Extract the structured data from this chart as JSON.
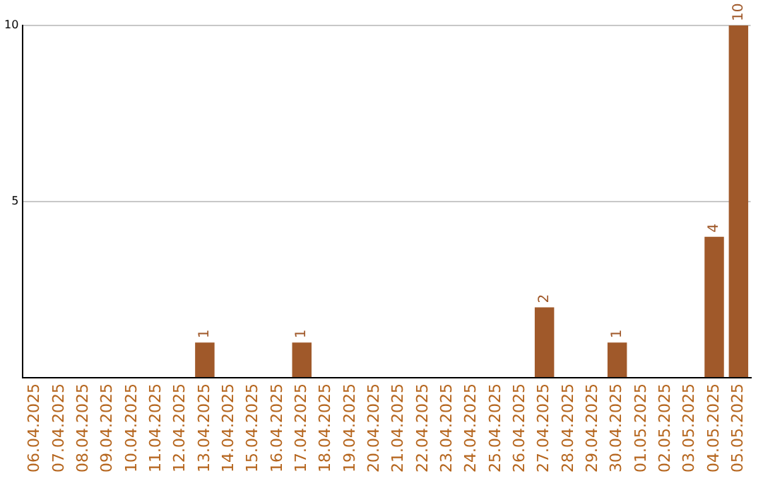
{
  "chart_data": {
    "type": "bar",
    "categories": [
      "06.04.2025",
      "07.04.2025",
      "08.04.2025",
      "09.04.2025",
      "10.04.2025",
      "11.04.2025",
      "12.04.2025",
      "13.04.2025",
      "14.04.2025",
      "15.04.2025",
      "16.04.2025",
      "17.04.2025",
      "18.04.2025",
      "19.04.2025",
      "20.04.2025",
      "21.04.2025",
      "22.04.2025",
      "23.04.2025",
      "24.04.2025",
      "25.04.2025",
      "26.04.2025",
      "27.04.2025",
      "28.04.2025",
      "29.04.2025",
      "30.04.2025",
      "01.05.2025",
      "02.05.2025",
      "03.05.2025",
      "04.05.2025",
      "05.05.2025"
    ],
    "values": [
      0,
      0,
      0,
      0,
      0,
      0,
      0,
      1,
      0,
      0,
      0,
      1,
      0,
      0,
      0,
      0,
      0,
      0,
      0,
      0,
      0,
      2,
      0,
      0,
      1,
      0,
      0,
      0,
      4,
      10
    ],
    "value_labels": [
      null,
      null,
      null,
      null,
      null,
      null,
      null,
      "1",
      null,
      null,
      null,
      "1",
      null,
      null,
      null,
      null,
      null,
      null,
      null,
      null,
      null,
      "2",
      null,
      null,
      "1",
      null,
      null,
      null,
      "4",
      "10"
    ],
    "color": "#a0592a",
    "ylim": [
      0,
      10
    ],
    "yticks": [
      {
        "value": 0,
        "label": null
      },
      5,
      10
    ],
    "grid": "y",
    "legend": false
  }
}
